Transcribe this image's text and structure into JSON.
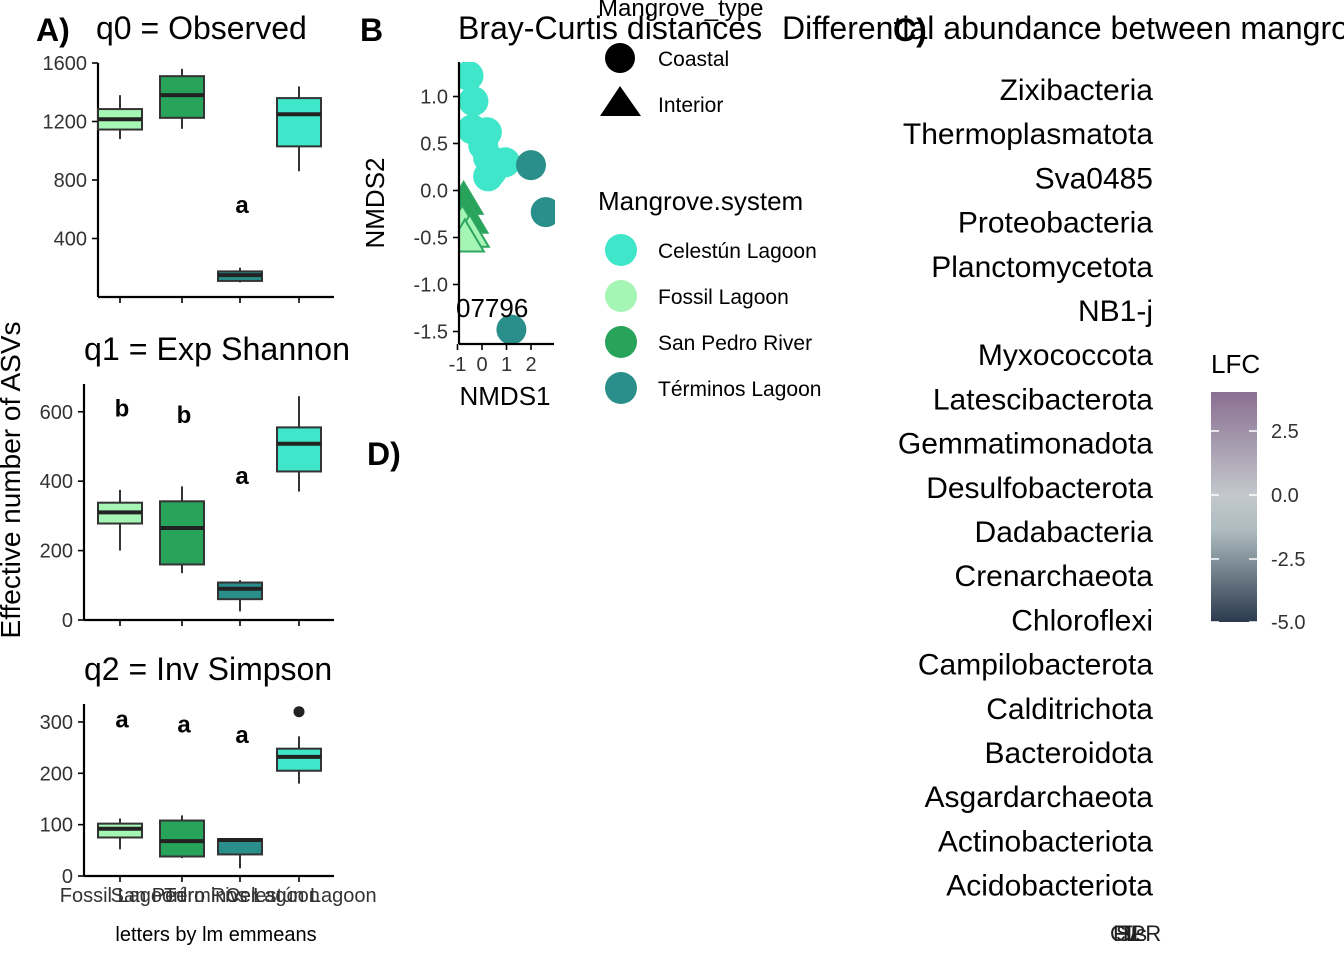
{
  "panels": {
    "a": "A)",
    "b": "B",
    "c": "C)",
    "d": "D)"
  },
  "alpha": {
    "y_axis_title": "Effective number of ASVs",
    "x_axis_title": "letters by lm emmeans",
    "x_tick_labels": [
      "Fossil Lagoon",
      "San Pedro River",
      "Términos Lagoon",
      "Celestún Lagoon"
    ],
    "colors": {
      "Fossil Lagoon": "#a5f5b4",
      "San Pedro River": "#27a35a",
      "Términos Lagoon": "#2a8f8a",
      "Celestún Lagoon": "#3fe6c9"
    }
  },
  "nmds": {
    "title": "Bray-Curtis distances",
    "xlabel": "NMDS1",
    "ylabel": "NMDS2",
    "stress_text": "07796",
    "x_ticks": [
      "-1",
      "0",
      "1",
      "2"
    ],
    "y_ticks": [
      "1.0",
      "0.5",
      "0.0",
      "-0.5",
      "-1.0",
      "-1.5"
    ]
  },
  "legend_type": {
    "title": "Mangrove_type",
    "items": [
      {
        "label": "Coastal",
        "shape": "circle"
      },
      {
        "label": "Interior",
        "shape": "triangle"
      }
    ]
  },
  "legend_system": {
    "title": "Mangrove.system",
    "items": [
      {
        "label": "Celestún Lagoon",
        "color": "#3fe6c9"
      },
      {
        "label": "Fossil Lagoon",
        "color": "#a5f5b4"
      },
      {
        "label": "San Pedro River",
        "color": "#27a35a"
      },
      {
        "label": "Términos Lagoon",
        "color": "#2a8f8a"
      }
    ]
  },
  "heatmap": {
    "title": "Differential abundance between mangrove",
    "phyla": [
      "Zixibacteria",
      "Thermoplasmatota",
      "Sva0485",
      "Proteobacteria",
      "Planctomycetota",
      "NB1-j",
      "Myxococcota",
      "Latescibacterota",
      "Gemmatimonadota",
      "Desulfobacterota",
      "Dadabacteria",
      "Crenarchaeota",
      "Chloroflexi",
      "Campilobacterota",
      "Calditrichota",
      "Bacteroidota",
      "Asgardarchaeota",
      "Actinobacteriota",
      "Acidobacteriota"
    ],
    "legend_title": "LFC",
    "legend_ticks": [
      "2.5",
      "0.0",
      "-2.5",
      "-5.0"
    ],
    "bottom_labels": [
      "CL",
      "FL",
      "SPR",
      "TL",
      "vs"
    ]
  },
  "chart_data": [
    {
      "type": "box",
      "title": "q0 = Observed",
      "categories": [
        "Fossil Lagoon",
        "San Pedro River",
        "Términos Lagoon",
        "Celestún Lagoon"
      ],
      "ylim": [
        0,
        1600
      ],
      "y_ticks": [
        400,
        800,
        1200,
        1600
      ],
      "boxes": [
        {
          "min": 1080,
          "q1": 1145,
          "median": 1215,
          "q3": 1285,
          "max": 1380
        },
        {
          "min": 1150,
          "q1": 1225,
          "median": 1380,
          "q3": 1510,
          "max": 1560
        },
        {
          "min": 100,
          "q1": 110,
          "median": 150,
          "q3": 175,
          "max": 200
        },
        {
          "min": 860,
          "q1": 1030,
          "median": 1250,
          "q3": 1360,
          "max": 1440
        }
      ],
      "letters": [
        "",
        "",
        "a",
        ""
      ],
      "letter_y": [
        null,
        null,
        630,
        null
      ]
    },
    {
      "type": "box",
      "title": "q1 = Exp Shannon",
      "categories": [
        "Fossil Lagoon",
        "San Pedro River",
        "Términos Lagoon",
        "Celestún Lagoon"
      ],
      "ylim": [
        0,
        680
      ],
      "y_ticks": [
        0,
        200,
        400,
        600
      ],
      "boxes": [
        {
          "min": 200,
          "q1": 278,
          "median": 310,
          "q3": 338,
          "max": 375
        },
        {
          "min": 135,
          "q1": 160,
          "median": 265,
          "q3": 342,
          "max": 385
        },
        {
          "min": 25,
          "q1": 60,
          "median": 90,
          "q3": 108,
          "max": 115
        },
        {
          "min": 370,
          "q1": 428,
          "median": 508,
          "q3": 555,
          "max": 645
        }
      ],
      "letters": [
        "b",
        "b",
        "a",
        ""
      ],
      "letter_y": [
        610,
        590,
        415,
        null
      ]
    },
    {
      "type": "box",
      "title": "q2 = Inv Simpson",
      "categories": [
        "Fossil Lagoon",
        "San Pedro River",
        "Términos Lagoon",
        "Celestún Lagoon"
      ],
      "ylim": [
        0,
        335
      ],
      "y_ticks": [
        0,
        100,
        200,
        300
      ],
      "boxes": [
        {
          "min": 52,
          "q1": 75,
          "median": 92,
          "q3": 102,
          "max": 112
        },
        {
          "min": 35,
          "q1": 38,
          "median": 68,
          "q3": 108,
          "max": 118
        },
        {
          "min": 15,
          "q1": 42,
          "median": 70,
          "q3": 72,
          "max": 72
        },
        {
          "min": 180,
          "q1": 205,
          "median": 232,
          "q3": 248,
          "max": 272,
          "outliers": [
            320
          ]
        }
      ],
      "letters": [
        "a",
        "a",
        "a",
        ""
      ],
      "letter_y": [
        305,
        295,
        275,
        null
      ]
    },
    {
      "type": "scatter",
      "title": "Bray-Curtis distances",
      "xlabel": "NMDS1",
      "ylabel": "NMDS2",
      "xlim": [
        -1.1,
        2.6
      ],
      "ylim": [
        -1.6,
        1.35
      ],
      "points": [
        {
          "x": -0.55,
          "y": 1.22,
          "system": "Celestún Lagoon",
          "shape": "circle"
        },
        {
          "x": -0.35,
          "y": 0.95,
          "system": "Celestún Lagoon",
          "shape": "circle"
        },
        {
          "x": -0.4,
          "y": 0.65,
          "system": "Celestún Lagoon",
          "shape": "circle"
        },
        {
          "x": 0.2,
          "y": 0.62,
          "system": "Celestún Lagoon",
          "shape": "circle"
        },
        {
          "x": 0.05,
          "y": 0.48,
          "system": "Celestún Lagoon",
          "shape": "circle"
        },
        {
          "x": 0.25,
          "y": 0.35,
          "system": "Celestún Lagoon",
          "shape": "circle"
        },
        {
          "x": 0.4,
          "y": 0.2,
          "system": "Celestún Lagoon",
          "shape": "circle"
        },
        {
          "x": 0.95,
          "y": 0.3,
          "system": "Celestún Lagoon",
          "shape": "circle"
        },
        {
          "x": 0.25,
          "y": 0.15,
          "system": "Celestún Lagoon",
          "shape": "circle"
        },
        {
          "x": 2.0,
          "y": 0.27,
          "system": "Términos Lagoon",
          "shape": "circle"
        },
        {
          "x": 2.6,
          "y": -0.23,
          "system": "Términos Lagoon",
          "shape": "circle"
        },
        {
          "x": 1.2,
          "y": -1.48,
          "system": "Términos Lagoon",
          "shape": "circle"
        },
        {
          "x": -0.75,
          "y": -0.1,
          "system": "San Pedro River",
          "shape": "triangle"
        },
        {
          "x": -0.55,
          "y": -0.3,
          "system": "San Pedro River",
          "shape": "triangle"
        },
        {
          "x": -0.8,
          "y": -0.35,
          "system": "Fossil Lagoon",
          "shape": "triangle"
        },
        {
          "x": -0.5,
          "y": -0.45,
          "system": "Fossil Lagoon",
          "shape": "triangle"
        },
        {
          "x": -0.7,
          "y": -0.5,
          "system": "Fossil Lagoon",
          "shape": "triangle"
        }
      ]
    }
  ]
}
